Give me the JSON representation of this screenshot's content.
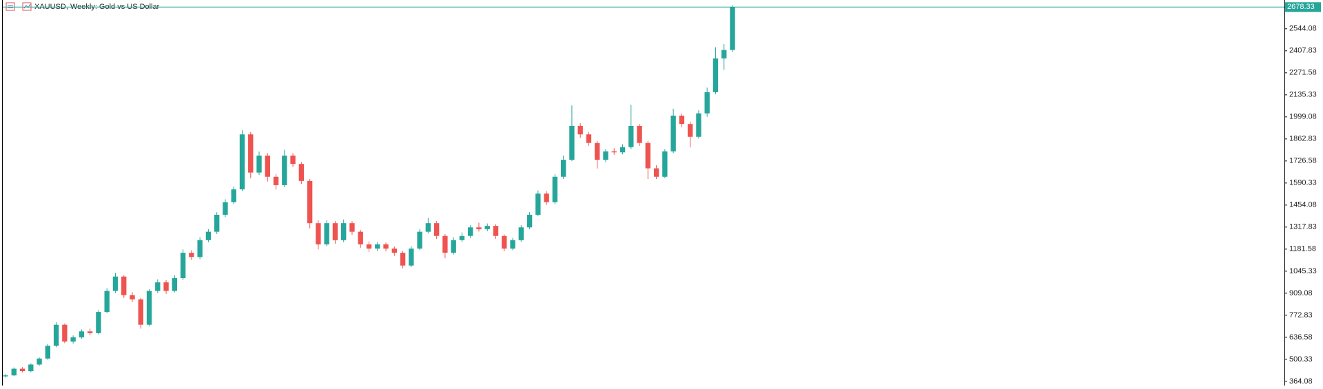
{
  "chart_data": {
    "type": "candlestick",
    "title": "XAUUSD, Weekly:  Gold vs US Dollar",
    "up_color": "#26a69a",
    "down_color": "#ef5350",
    "grid": false,
    "ylim": [
      338,
      2722
    ],
    "yticks": [
      364.08,
      500.33,
      636.58,
      772.83,
      909.08,
      1045.33,
      1181.58,
      1317.83,
      1454.08,
      1590.33,
      1726.58,
      1862.83,
      1999.08,
      2135.33,
      2271.58,
      2407.83,
      2544.08
    ],
    "open": [
      395,
      401,
      442,
      427,
      468,
      505,
      584,
      714,
      610,
      636,
      673,
      662,
      793,
      923,
      1012,
      897,
      871,
      714,
      923,
      976,
      923,
      1002,
      1159,
      1133,
      1237,
      1289,
      1394,
      1472,
      1551,
      1891,
      1655,
      1760,
      1629,
      1577,
      1760,
      1708,
      1603,
      1342,
      1211,
      1342,
      1237,
      1342,
      1289,
      1211,
      1185,
      1211,
      1185,
      1159,
      1080,
      1185,
      1289,
      1342,
      1263,
      1159,
      1237,
      1263,
      1316,
      1305,
      1325,
      1263,
      1185,
      1237,
      1316,
      1394,
      1525,
      1472,
      1629,
      1734,
      1943,
      1891,
      1838,
      1734,
      1786,
      1780,
      1812,
      1943,
      1838,
      1681,
      1629,
      1786,
      2007,
      1955,
      1876,
      2021,
      2152,
      2361,
      2413
    ],
    "high": [
      410,
      450,
      452,
      475,
      512,
      595,
      730,
      722,
      648,
      685,
      690,
      805,
      940,
      1035,
      1020,
      915,
      880,
      935,
      995,
      990,
      1020,
      1180,
      1175,
      1255,
      1305,
      1410,
      1490,
      1570,
      1917,
      1905,
      1785,
      1775,
      1645,
      1795,
      1775,
      1720,
      1615,
      1360,
      1360,
      1355,
      1365,
      1355,
      1300,
      1230,
      1225,
      1222,
      1198,
      1170,
      1200,
      1305,
      1375,
      1355,
      1275,
      1255,
      1285,
      1330,
      1345,
      1340,
      1335,
      1272,
      1250,
      1330,
      1410,
      1545,
      1540,
      1645,
      1760,
      2070,
      1960,
      1905,
      1850,
      1800,
      1805,
      1830,
      2075,
      1955,
      1850,
      1700,
      1800,
      2050,
      2020,
      1970,
      2040,
      2180,
      2430,
      2450,
      2690
    ],
    "low": [
      388,
      396,
      420,
      420,
      460,
      498,
      575,
      600,
      598,
      628,
      650,
      655,
      785,
      910,
      880,
      855,
      690,
      705,
      910,
      905,
      915,
      990,
      1115,
      1120,
      1225,
      1275,
      1380,
      1460,
      1540,
      1620,
      1640,
      1600,
      1550,
      1565,
      1690,
      1585,
      1310,
      1180,
      1200,
      1215,
      1225,
      1270,
      1190,
      1165,
      1170,
      1168,
      1140,
      1062,
      1070,
      1175,
      1278,
      1245,
      1125,
      1148,
      1225,
      1250,
      1290,
      1292,
      1245,
      1168,
      1175,
      1228,
      1305,
      1385,
      1455,
      1460,
      1615,
      1725,
      1870,
      1820,
      1680,
      1720,
      1765,
      1768,
      1800,
      1820,
      1615,
      1615,
      1620,
      1775,
      1935,
      1810,
      1865,
      2000,
      2140,
      2290,
      2400
    ],
    "close": [
      401,
      442,
      427,
      468,
      505,
      584,
      714,
      610,
      636,
      673,
      662,
      793,
      923,
      1012,
      897,
      871,
      714,
      923,
      976,
      923,
      1002,
      1159,
      1133,
      1237,
      1289,
      1394,
      1472,
      1551,
      1891,
      1655,
      1760,
      1629,
      1577,
      1760,
      1708,
      1603,
      1342,
      1211,
      1342,
      1237,
      1342,
      1289,
      1211,
      1185,
      1211,
      1185,
      1159,
      1080,
      1185,
      1289,
      1342,
      1263,
      1159,
      1237,
      1263,
      1316,
      1305,
      1325,
      1263,
      1185,
      1237,
      1316,
      1394,
      1525,
      1472,
      1629,
      1734,
      1943,
      1891,
      1838,
      1734,
      1786,
      1780,
      1812,
      1943,
      1838,
      1681,
      1629,
      1786,
      2007,
      1955,
      1876,
      2021,
      2152,
      2361,
      2413,
      2678.33
    ]
  }
}
